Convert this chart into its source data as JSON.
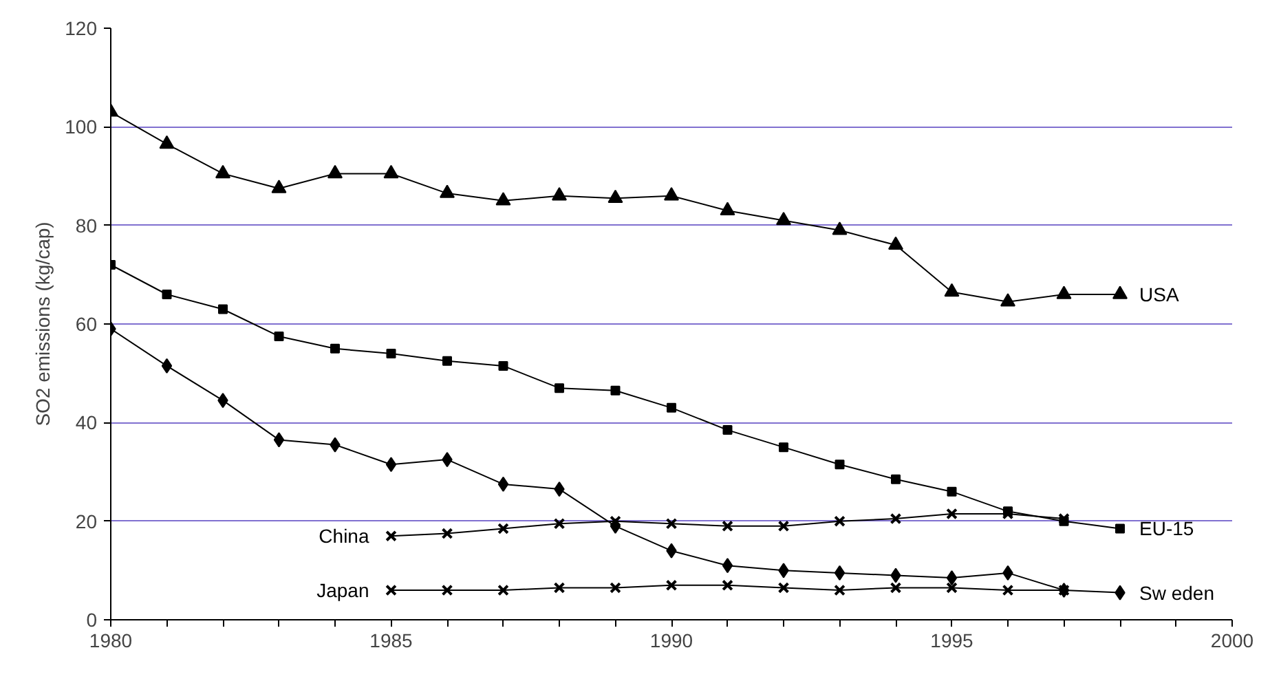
{
  "chart_data": {
    "type": "line",
    "ylabel": "SO2 emissions (kg/cap)",
    "xlim": [
      1980,
      2000
    ],
    "ylim": [
      0,
      120
    ],
    "xticks": [
      1980,
      {
        "value": 1981,
        "label": null
      },
      {
        "value": 1982,
        "label": null
      },
      {
        "value": 1983,
        "label": null
      },
      {
        "value": 1984,
        "label": null
      },
      1985,
      {
        "value": 1986,
        "label": null
      },
      {
        "value": 1987,
        "label": null
      },
      {
        "value": 1988,
        "label": null
      },
      {
        "value": 1989,
        "label": null
      },
      1990,
      {
        "value": 1991,
        "label": null
      },
      {
        "value": 1992,
        "label": null
      },
      {
        "value": 1993,
        "label": null
      },
      {
        "value": 1994,
        "label": null
      },
      1995,
      {
        "value": 1996,
        "label": null
      },
      {
        "value": 1997,
        "label": null
      },
      {
        "value": 1998,
        "label": null
      },
      {
        "value": 1999,
        "label": null
      },
      2000
    ],
    "yticks": [
      0,
      20,
      40,
      60,
      80,
      100,
      120
    ],
    "grid": "y",
    "line_style": "solid",
    "x": [
      1980,
      1981,
      1982,
      1983,
      1984,
      1985,
      1986,
      1987,
      1988,
      1989,
      1990,
      1991,
      1992,
      1993,
      1994,
      1995,
      1996,
      1997,
      1998
    ],
    "series": [
      {
        "name": "USA",
        "color": "#000000",
        "marker": "triangle",
        "values": [
          103,
          96.5,
          90.5,
          87.5,
          90.5,
          90.5,
          86.5,
          85,
          86,
          85.5,
          86,
          83,
          81,
          79,
          76,
          66.5,
          64.5,
          66,
          66
        ]
      },
      {
        "name": "EU-15",
        "color": "#000000",
        "marker": "square",
        "values": [
          72,
          66,
          63,
          57.5,
          55,
          54,
          52.5,
          51.5,
          47,
          46.5,
          43,
          38.5,
          35,
          31.5,
          28.5,
          26,
          22,
          20,
          18.5
        ]
      },
      {
        "name": "Sw eden",
        "color": "#000000",
        "marker": "diamond",
        "values": [
          59,
          51.5,
          44.5,
          36.5,
          35.5,
          31.5,
          32.5,
          27.5,
          26.5,
          19,
          14,
          11,
          10,
          9.5,
          9,
          8.5,
          9.5,
          6,
          5.5
        ]
      },
      {
        "name": "China",
        "color": "#000000",
        "marker": "cross",
        "x": [
          1985,
          1986,
          1987,
          1988,
          1989,
          1990,
          1991,
          1992,
          1993,
          1994,
          1995,
          1996,
          1997
        ],
        "values": [
          17,
          17.5,
          18.5,
          19.5,
          20,
          19.5,
          19,
          19,
          20,
          20.5,
          21.5,
          21.5,
          20.5
        ]
      },
      {
        "name": "Japan",
        "color": "#000000",
        "marker": "cross",
        "x": [
          1985,
          1986,
          1987,
          1988,
          1989,
          1990,
          1991,
          1992,
          1993,
          1994,
          1995,
          1996,
          1997
        ],
        "values": [
          6,
          6,
          6,
          6.5,
          6.5,
          7,
          7,
          6.5,
          6,
          6.5,
          6.5,
          6,
          6
        ]
      }
    ]
  }
}
